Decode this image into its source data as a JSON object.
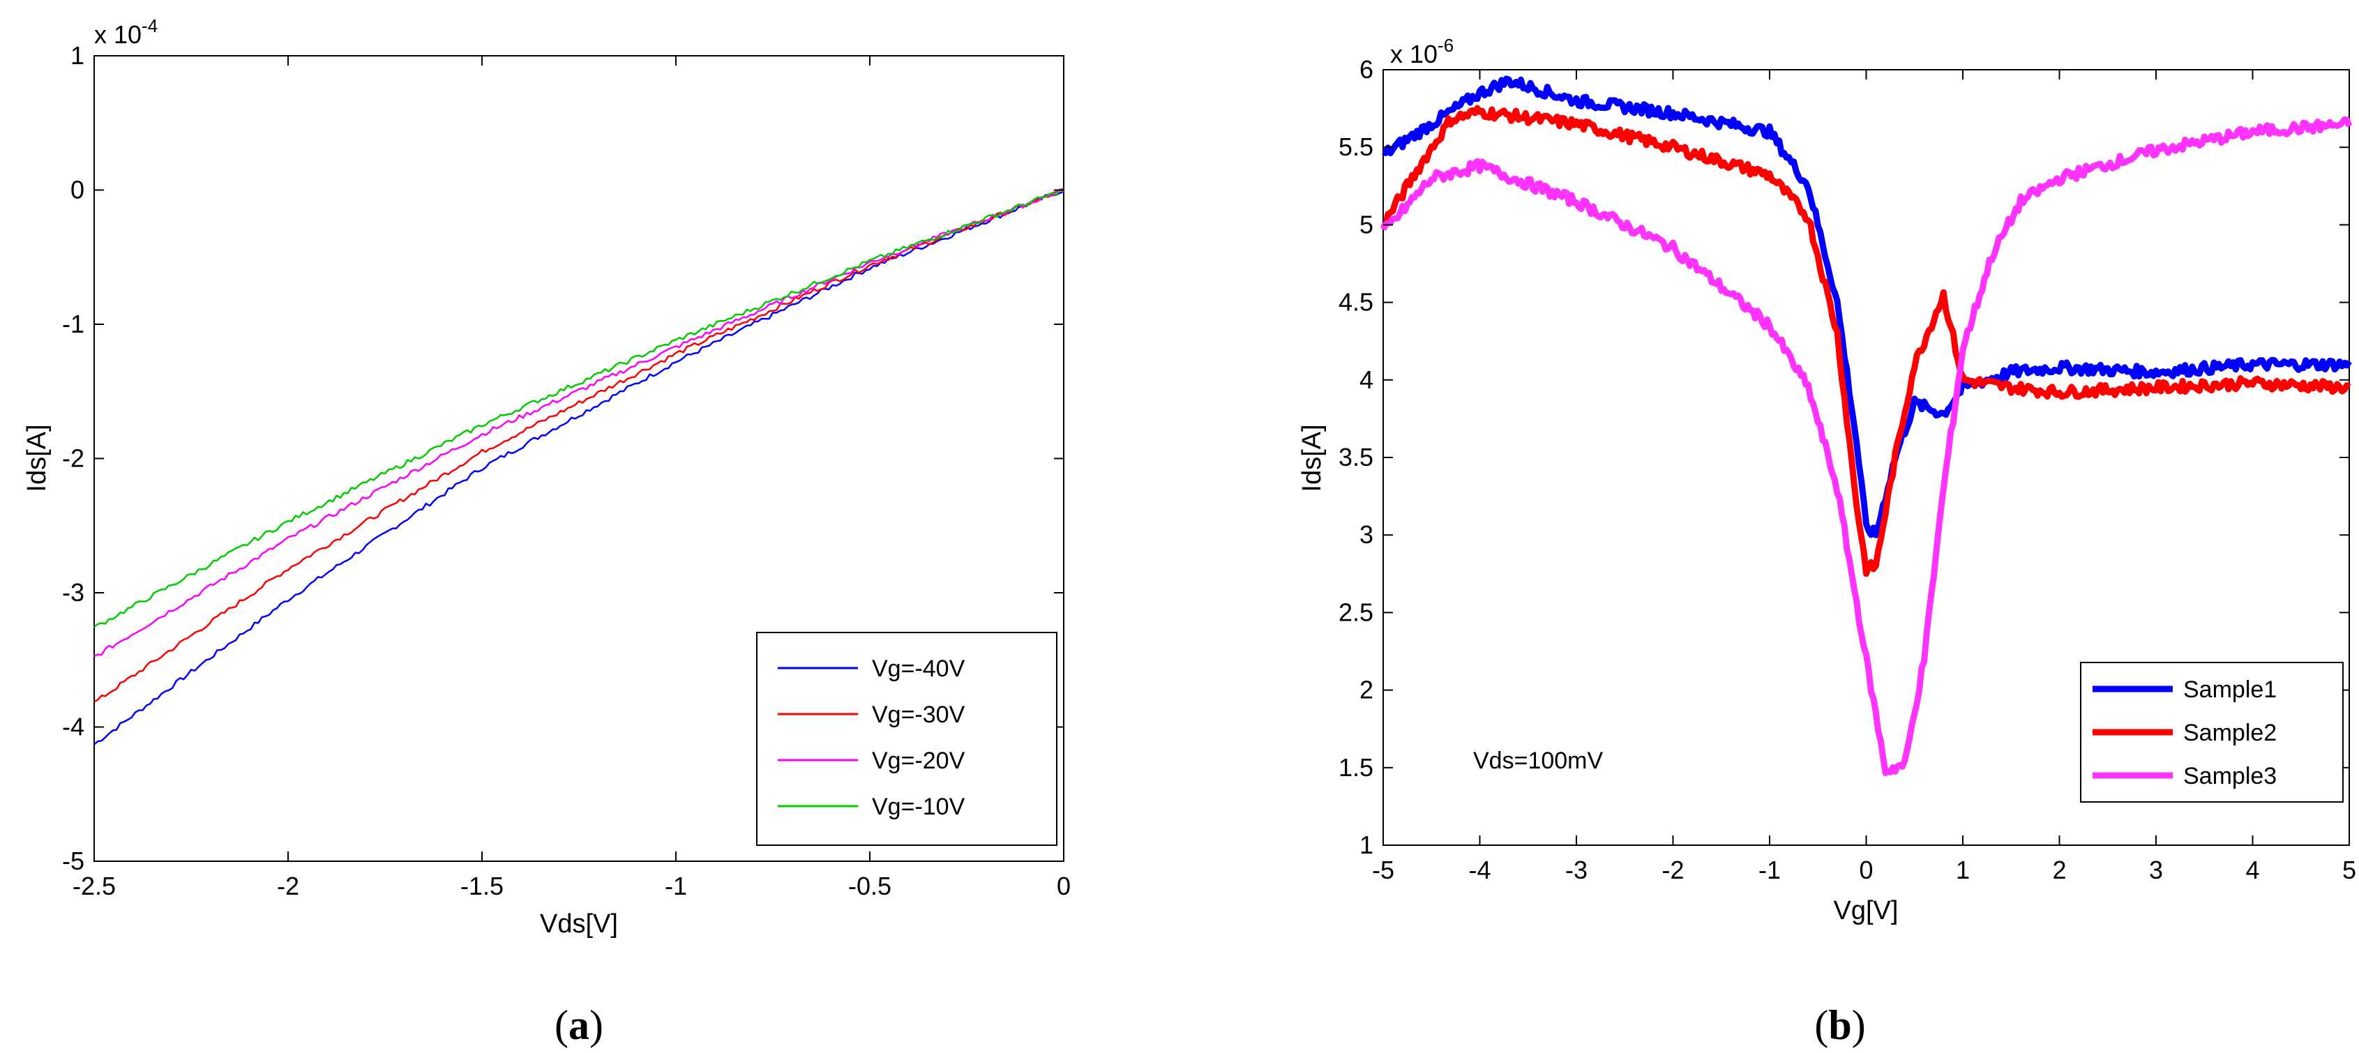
{
  "chart_data": [
    {
      "panel": "(a)",
      "panel_letter": "a",
      "type": "line",
      "xlabel": "Vds[V]",
      "ylabel": "Ids[A]",
      "exponent_label": "x 10",
      "exponent_power": "-4",
      "xlim": [
        -2.5,
        0
      ],
      "ylim": [
        -5,
        1
      ],
      "xticks": [
        -2.5,
        -2,
        -1.5,
        -1,
        -0.5,
        0
      ],
      "xtick_labels": [
        "-2.5",
        "-2",
        "-1.5",
        "-1",
        "-0.5",
        "0"
      ],
      "yticks": [
        -5,
        -4,
        -3,
        -2,
        -1,
        0,
        1
      ],
      "ytick_labels": [
        "-5",
        "-4",
        "-3",
        "-2",
        "-1",
        "0",
        "1"
      ],
      "legend_position": "bottom-right",
      "series": [
        {
          "name": "Vg=-40V",
          "color": "#0000ff",
          "x": [
            -2.5,
            -2,
            -1.5,
            -1,
            -0.5,
            0
          ],
          "values": [
            -4.13,
            -3.05,
            -2.07,
            -1.28,
            -0.58,
            0
          ]
        },
        {
          "name": "Vg=-30V",
          "color": "#ff0000",
          "x": [
            -2.5,
            -2,
            -1.5,
            -1,
            -0.5,
            0
          ],
          "values": [
            -3.82,
            -2.82,
            -1.95,
            -1.22,
            -0.56,
            0
          ]
        },
        {
          "name": "Vg=-20V",
          "color": "#ff00ff",
          "x": [
            -2.5,
            -2,
            -1.5,
            -1,
            -0.5,
            0
          ],
          "values": [
            -3.48,
            -2.6,
            -1.82,
            -1.17,
            -0.54,
            0
          ]
        },
        {
          "name": "Vg=-10V",
          "color": "#00cc00",
          "x": [
            -2.5,
            -2,
            -1.5,
            -1,
            -0.5,
            0
          ],
          "values": [
            -3.26,
            -2.47,
            -1.75,
            -1.12,
            -0.53,
            0
          ]
        }
      ]
    },
    {
      "panel": "(b)",
      "panel_letter": "b",
      "type": "line",
      "xlabel": "Vg[V]",
      "ylabel": "Ids[A]",
      "exponent_label": "x 10",
      "exponent_power": "-6",
      "annotation": "Vds=100mV",
      "xlim": [
        -5,
        5
      ],
      "ylim": [
        1,
        6
      ],
      "xticks": [
        -5,
        -4,
        -3,
        -2,
        -1,
        0,
        1,
        2,
        3,
        4,
        5
      ],
      "xtick_labels": [
        "-5",
        "-4",
        "-3",
        "-2",
        "-1",
        "0",
        "1",
        "2",
        "3",
        "4",
        "5"
      ],
      "yticks": [
        1,
        1.5,
        2,
        2.5,
        3,
        3.5,
        4,
        4.5,
        5,
        5.5,
        6
      ],
      "ytick_labels": [
        "1",
        "1.5",
        "2",
        "2.5",
        "3",
        "3.5",
        "4",
        "4.5",
        "5",
        "5.5",
        "6"
      ],
      "legend_position": "bottom-right",
      "series": [
        {
          "name": "Sample1",
          "color": "#0000ff",
          "x": [
            -5,
            -4.5,
            -4,
            -3.7,
            -3,
            -2,
            -1,
            -0.6,
            -0.3,
            -0.1,
            0,
            0.1,
            0.3,
            0.5,
            0.8,
            1,
            1.5,
            2,
            3,
            4,
            5
          ],
          "values": [
            5.45,
            5.65,
            5.85,
            5.93,
            5.8,
            5.72,
            5.6,
            5.25,
            4.5,
            3.6,
            3.05,
            3.0,
            3.5,
            3.85,
            3.78,
            3.95,
            4.05,
            4.08,
            4.05,
            4.1,
            4.1
          ]
        },
        {
          "name": "Sample2",
          "color": "#ff0000",
          "x": [
            -5,
            -4.6,
            -4.3,
            -4,
            -3,
            -2,
            -1,
            -0.6,
            -0.3,
            -0.1,
            0,
            0.1,
            0.3,
            0.5,
            0.8,
            1,
            1.5,
            2,
            3,
            4,
            5
          ],
          "values": [
            5.0,
            5.4,
            5.68,
            5.73,
            5.65,
            5.5,
            5.32,
            5.05,
            4.3,
            3.2,
            2.78,
            2.8,
            3.5,
            4.1,
            4.55,
            4.0,
            3.95,
            3.92,
            3.95,
            3.98,
            3.95
          ]
        },
        {
          "name": "Sample3",
          "color": "#ff33ff",
          "x": [
            -5,
            -4.5,
            -4,
            -3,
            -2,
            -1.5,
            -1,
            -0.6,
            -0.3,
            0,
            0.2,
            0.4,
            0.6,
            0.8,
            1,
            1.3,
            1.6,
            2,
            3,
            4,
            5
          ],
          "values": [
            4.95,
            5.3,
            5.38,
            5.15,
            4.85,
            4.6,
            4.35,
            3.95,
            3.3,
            2.2,
            1.48,
            1.52,
            2.2,
            3.3,
            4.2,
            4.8,
            5.15,
            5.3,
            5.48,
            5.6,
            5.65
          ]
        }
      ]
    }
  ]
}
